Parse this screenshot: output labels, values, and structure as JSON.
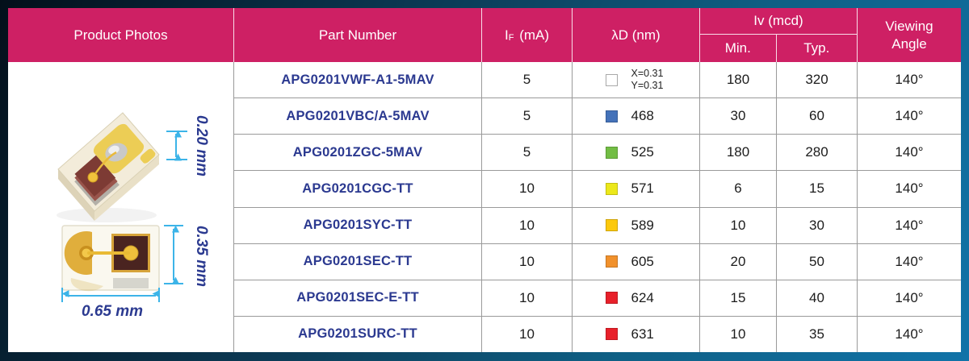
{
  "header": {
    "product_photos": "Product Photos",
    "part_number": "Part Number",
    "if_current": {
      "base": "I",
      "sub": "F",
      "unit": "(mA)"
    },
    "dominant_wavelength": "λD (nm)",
    "luminous_intensity": "Iv (mcd)",
    "min": "Min.",
    "typ": "Typ.",
    "viewing_angle_line1": "Viewing",
    "viewing_angle_line2": "Angle"
  },
  "photos": {
    "dim_chip_height": "0.20 mm",
    "dim_package_height": "0.35 mm",
    "dim_package_width": "0.65 mm"
  },
  "colors": {
    "header_bg": "#ce2064",
    "part_number_text": "#2b3990",
    "dimension_arrow": "#3cb4e8",
    "dimension_text": "#2b3a90"
  },
  "rows": [
    {
      "part": "APG0201VWF-A1-5MAV",
      "if_ma": "5",
      "swatch": "#ffffff",
      "swatch_border": "#a8a8a8",
      "chromaticity": [
        "X=0.31",
        "Y=0.31"
      ],
      "iv_min": "180",
      "iv_typ": "320",
      "viewing_angle": "140°"
    },
    {
      "part": "APG0201VBC/A-5MAV",
      "if_ma": "5",
      "swatch": "#4472b9",
      "lambda_nm": "468",
      "iv_min": "30",
      "iv_typ": "60",
      "viewing_angle": "140°"
    },
    {
      "part": "APG0201ZGC-5MAV",
      "if_ma": "5",
      "swatch": "#72bd44",
      "lambda_nm": "525",
      "iv_min": "180",
      "iv_typ": "280",
      "viewing_angle": "140°"
    },
    {
      "part": "APG0201CGC-TT",
      "if_ma": "10",
      "swatch": "#ece81a",
      "lambda_nm": "571",
      "iv_min": "6",
      "iv_typ": "15",
      "viewing_angle": "140°"
    },
    {
      "part": "APG0201SYC-TT",
      "if_ma": "10",
      "swatch": "#fcc90d",
      "lambda_nm": "589",
      "iv_min": "10",
      "iv_typ": "30",
      "viewing_angle": "140°"
    },
    {
      "part": "APG0201SEC-TT",
      "if_ma": "10",
      "swatch": "#f1912c",
      "lambda_nm": "605",
      "iv_min": "20",
      "iv_typ": "50",
      "viewing_angle": "140°"
    },
    {
      "part": "APG0201SEC-E-TT",
      "if_ma": "10",
      "swatch": "#e8202a",
      "lambda_nm": "624",
      "iv_min": "15",
      "iv_typ": "40",
      "viewing_angle": "140°"
    },
    {
      "part": "APG0201SURC-TT",
      "if_ma": "10",
      "swatch": "#e8202a",
      "lambda_nm": "631",
      "iv_min": "10",
      "iv_typ": "35",
      "viewing_angle": "140°"
    }
  ]
}
